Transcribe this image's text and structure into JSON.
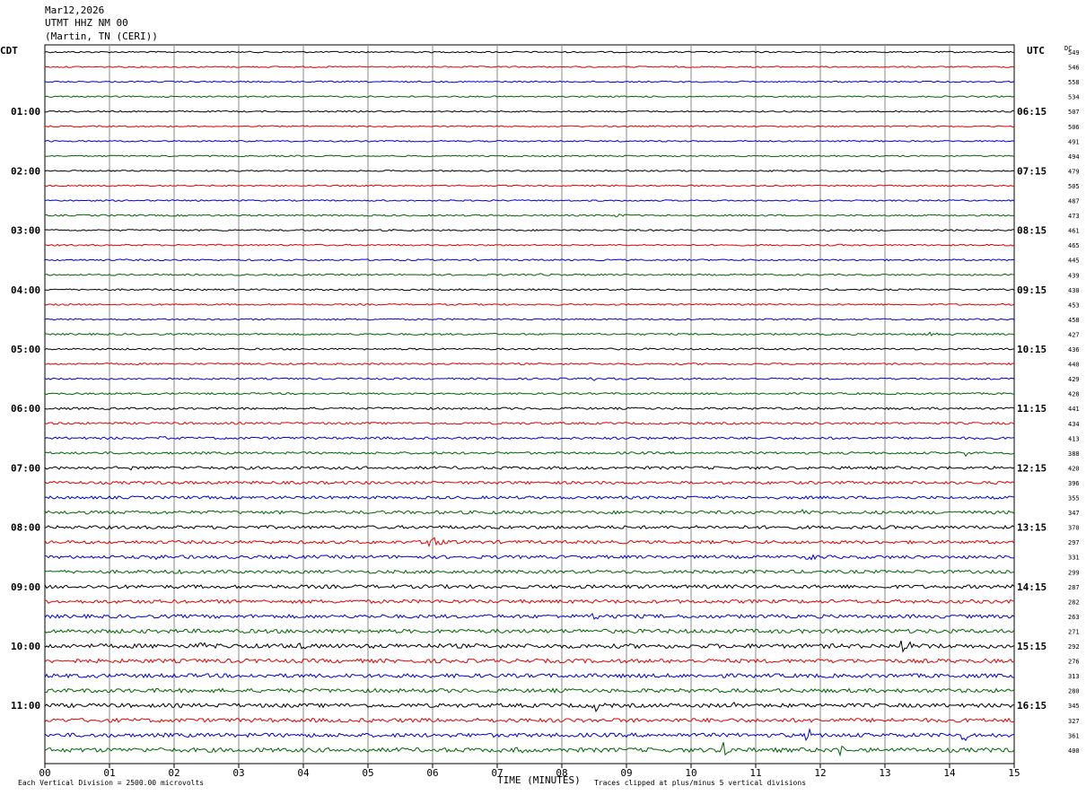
{
  "header": {
    "date": "Mar12,2026",
    "station": "UTMT HHZ NM 00",
    "location": "(Martin, TN (CERI))"
  },
  "left_tz": "CDT",
  "right_tz": "UTC",
  "dc_label": "DC",
  "footer": {
    "scale": "Each Vertical Division = 2500.00 microvolts",
    "xlabel": "TIME (MINUTES)",
    "clip": "Traces clipped at plus/minus 5 vertical divisions"
  },
  "colors": {
    "black": "#000000",
    "red": "#e00000",
    "blue": "#0000d0",
    "green": "#006400"
  },
  "chart_data": {
    "type": "line",
    "title": "UTMT HHZ NM 00",
    "xlabel": "TIME (MINUTES)",
    "ylabel": "",
    "x_ticks": [
      "00",
      "01",
      "02",
      "03",
      "04",
      "05",
      "06",
      "07",
      "08",
      "09",
      "10",
      "11",
      "12",
      "13",
      "14",
      "15"
    ],
    "xlim": [
      0,
      15
    ],
    "left_hour_labels": [
      "01:00",
      "02:00",
      "03:00",
      "04:00",
      "05:00",
      "06:00",
      "07:00",
      "08:00",
      "09:00",
      "10:00",
      "11:00"
    ],
    "right_hour_labels": [
      "06:15",
      "07:15",
      "08:15",
      "09:15",
      "10:15",
      "11:15",
      "12:15",
      "13:15",
      "14:15",
      "15:15",
      "16:15"
    ],
    "trace_colors": [
      "black",
      "red",
      "blue",
      "green"
    ],
    "dc_offsets": [
      549,
      546,
      558,
      534,
      507,
      506,
      491,
      494,
      479,
      505,
      487,
      473,
      461,
      465,
      445,
      439,
      430,
      453,
      458,
      427,
      436,
      440,
      429,
      428,
      441,
      434,
      413,
      388,
      420,
      396,
      355,
      347,
      370,
      297,
      331,
      299,
      287,
      282,
      263,
      271,
      292,
      276,
      313,
      280,
      345,
      327,
      361,
      400
    ],
    "noise_levels": [
      0.8,
      0.8,
      0.8,
      0.8,
      0.8,
      0.8,
      0.8,
      0.8,
      0.8,
      0.8,
      0.8,
      0.9,
      0.9,
      0.9,
      0.9,
      0.9,
      0.9,
      0.9,
      0.9,
      1.0,
      1.0,
      1.0,
      1.0,
      1.0,
      1.2,
      1.2,
      1.3,
      1.3,
      1.6,
      1.6,
      1.6,
      1.8,
      1.8,
      1.8,
      1.8,
      1.8,
      2.0,
      2.0,
      2.0,
      2.2,
      2.4,
      2.2,
      2.2,
      2.2,
      2.2,
      2.2,
      2.2,
      2.4
    ],
    "events": [
      {
        "trace": 11,
        "minute": 8.85,
        "amplitude": 2
      },
      {
        "trace": 15,
        "minute": 7.65,
        "amplitude": 2
      },
      {
        "trace": 18,
        "minute": 13.8,
        "amplitude": 3
      },
      {
        "trace": 19,
        "minute": 13.7,
        "amplitude": 3
      },
      {
        "trace": 22,
        "minute": 8.45,
        "amplitude": 2
      },
      {
        "trace": 25,
        "minute": 11.6,
        "amplitude": 3
      },
      {
        "trace": 26,
        "minute": 1.75,
        "amplitude": 3
      },
      {
        "trace": 26,
        "minute": 9.35,
        "amplitude": 3
      },
      {
        "trace": 27,
        "minute": 14.2,
        "amplitude": 5
      },
      {
        "trace": 28,
        "minute": 1.3,
        "amplitude": 3
      },
      {
        "trace": 31,
        "minute": 11.7,
        "amplitude": 4
      },
      {
        "trace": 33,
        "minute": 5.95,
        "amplitude": 14
      },
      {
        "trace": 34,
        "minute": 1.7,
        "amplitude": 5
      },
      {
        "trace": 34,
        "minute": 11.8,
        "amplitude": 4
      },
      {
        "trace": 35,
        "minute": 2.1,
        "amplitude": 4
      },
      {
        "trace": 38,
        "minute": 8.5,
        "amplitude": 5
      },
      {
        "trace": 40,
        "minute": 13.25,
        "amplitude": 13
      },
      {
        "trace": 40,
        "minute": 3.9,
        "amplitude": 6
      },
      {
        "trace": 40,
        "minute": 2.4,
        "amplitude": 4
      },
      {
        "trace": 44,
        "minute": 8.5,
        "amplitude": 7
      },
      {
        "trace": 44,
        "minute": 10.65,
        "amplitude": 7
      },
      {
        "trace": 46,
        "minute": 11.8,
        "amplitude": 8
      },
      {
        "trace": 46,
        "minute": 14.2,
        "amplitude": 9
      },
      {
        "trace": 47,
        "minute": 10.5,
        "amplitude": 9
      },
      {
        "trace": 47,
        "minute": 12.3,
        "amplitude": 8
      },
      {
        "trace": 47,
        "minute": 7.3,
        "amplitude": 4
      }
    ]
  }
}
